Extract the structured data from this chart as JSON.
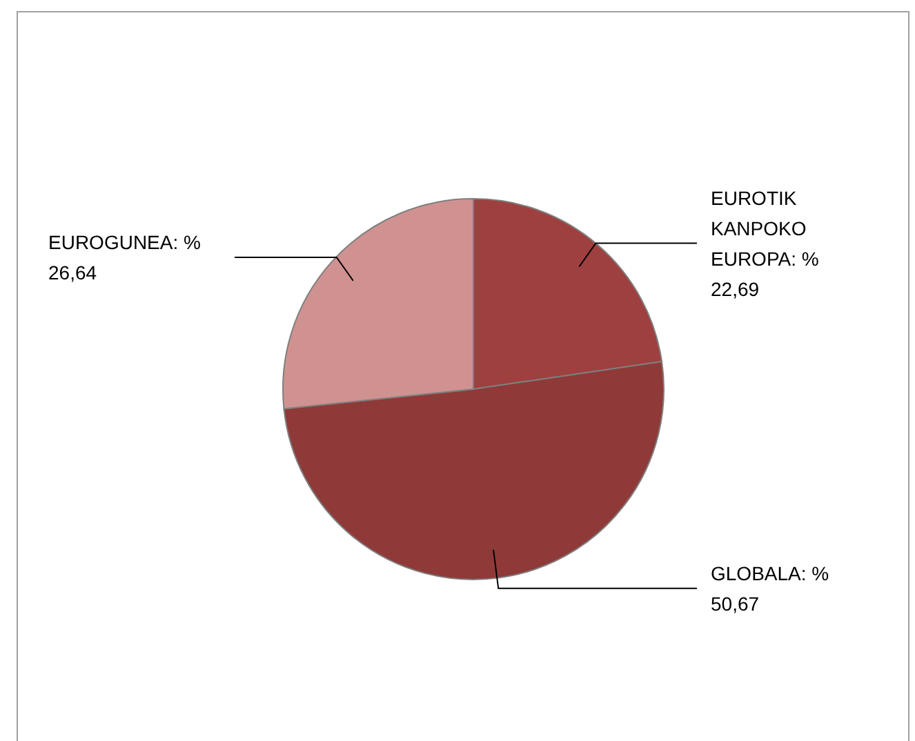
{
  "chart_data": {
    "type": "pie",
    "categories": [
      "EUROTIK KANPOKO EUROPA",
      "GLOBALA",
      "EUROGUNEA"
    ],
    "values": [
      22.69,
      50.67,
      26.64
    ],
    "value_labels": [
      "% 22,69",
      "% 50,67",
      "% 26,64"
    ],
    "colors": [
      "#9e403f",
      "#8f3a38",
      "#d09290"
    ],
    "legend": false
  }
}
